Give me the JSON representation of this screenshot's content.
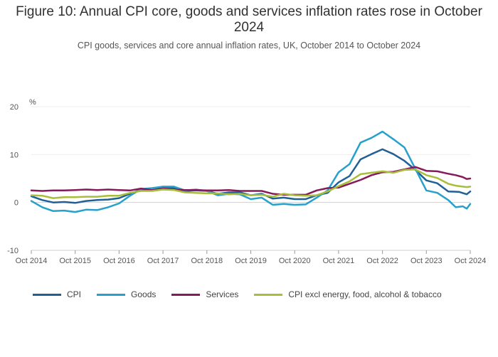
{
  "header": {
    "title": "Figure 10: Annual CPI core, goods and services inflation rates rose in October 2024",
    "subtitle": "CPI goods, services and core annual inflation rates, UK, October 2014 to October 2024"
  },
  "chart_data": {
    "type": "line",
    "title": "Figure 10: Annual CPI core, goods and services inflation rates rose in October 2024",
    "subtitle": "CPI goods, services and core annual inflation rates, UK, October 2014 to October 2024",
    "ylabel": "%",
    "ylim": [
      -10,
      20
    ],
    "yticks": [
      "20",
      "10",
      "0",
      "-10"
    ],
    "yticks_values": [
      20,
      10,
      0,
      -10
    ],
    "xlim": [
      2014.75,
      2024.75
    ],
    "xticks": [
      "Oct 2014",
      "Oct 2015",
      "Oct 2016",
      "Oct 2017",
      "Oct 2018",
      "Oct 2019",
      "Oct 2020",
      "Oct 2021",
      "Oct 2022",
      "Oct 2023",
      "Oct 2024"
    ],
    "xticks_values": [
      2014.75,
      2015.75,
      2016.75,
      2017.75,
      2018.75,
      2019.75,
      2020.75,
      2021.75,
      2022.75,
      2023.75,
      2024.75
    ],
    "x_unit": "year",
    "legend_position": "bottom",
    "series": [
      {
        "name": "CPI",
        "color": "#206095",
        "points": [
          [
            2014.75,
            1.3
          ],
          [
            2015.0,
            0.5
          ],
          [
            2015.25,
            0.0
          ],
          [
            2015.5,
            0.1
          ],
          [
            2015.75,
            -0.1
          ],
          [
            2016.0,
            0.3
          ],
          [
            2016.25,
            0.5
          ],
          [
            2016.5,
            0.6
          ],
          [
            2016.75,
            0.9
          ],
          [
            2017.0,
            1.8
          ],
          [
            2017.25,
            2.7
          ],
          [
            2017.5,
            2.6
          ],
          [
            2017.75,
            3.0
          ],
          [
            2018.0,
            3.0
          ],
          [
            2018.25,
            2.4
          ],
          [
            2018.5,
            2.5
          ],
          [
            2018.75,
            2.4
          ],
          [
            2019.0,
            1.8
          ],
          [
            2019.25,
            2.1
          ],
          [
            2019.5,
            2.1
          ],
          [
            2019.75,
            1.5
          ],
          [
            2020.0,
            1.8
          ],
          [
            2020.25,
            0.8
          ],
          [
            2020.5,
            1.0
          ],
          [
            2020.75,
            0.7
          ],
          [
            2021.0,
            0.7
          ],
          [
            2021.25,
            1.5
          ],
          [
            2021.5,
            2.0
          ],
          [
            2021.75,
            4.2
          ],
          [
            2022.0,
            5.5
          ],
          [
            2022.25,
            9.0
          ],
          [
            2022.5,
            10.1
          ],
          [
            2022.75,
            11.1
          ],
          [
            2023.0,
            10.1
          ],
          [
            2023.25,
            8.7
          ],
          [
            2023.5,
            6.8
          ],
          [
            2023.75,
            4.6
          ],
          [
            2024.0,
            4.0
          ],
          [
            2024.25,
            2.3
          ],
          [
            2024.5,
            2.2
          ],
          [
            2024.67,
            1.7
          ],
          [
            2024.75,
            2.3
          ]
        ]
      },
      {
        "name": "Goods",
        "color": "#27a0cc",
        "points": [
          [
            2014.75,
            0.3
          ],
          [
            2015.0,
            -1.0
          ],
          [
            2015.25,
            -1.8
          ],
          [
            2015.5,
            -1.7
          ],
          [
            2015.75,
            -2.0
          ],
          [
            2016.0,
            -1.5
          ],
          [
            2016.25,
            -1.6
          ],
          [
            2016.5,
            -1.0
          ],
          [
            2016.75,
            -0.2
          ],
          [
            2017.0,
            1.4
          ],
          [
            2017.25,
            2.8
          ],
          [
            2017.5,
            3.0
          ],
          [
            2017.75,
            3.3
          ],
          [
            2018.0,
            3.3
          ],
          [
            2018.25,
            2.5
          ],
          [
            2018.5,
            2.7
          ],
          [
            2018.75,
            2.4
          ],
          [
            2019.0,
            1.5
          ],
          [
            2019.25,
            1.8
          ],
          [
            2019.5,
            1.7
          ],
          [
            2019.75,
            0.7
          ],
          [
            2020.0,
            1.0
          ],
          [
            2020.25,
            -0.5
          ],
          [
            2020.5,
            -0.3
          ],
          [
            2020.75,
            -0.5
          ],
          [
            2021.0,
            -0.4
          ],
          [
            2021.25,
            1.0
          ],
          [
            2021.5,
            2.5
          ],
          [
            2021.75,
            6.3
          ],
          [
            2022.0,
            8.0
          ],
          [
            2022.25,
            12.5
          ],
          [
            2022.5,
            13.5
          ],
          [
            2022.75,
            14.8
          ],
          [
            2023.0,
            13.2
          ],
          [
            2023.25,
            11.5
          ],
          [
            2023.5,
            7.0
          ],
          [
            2023.75,
            2.5
          ],
          [
            2024.0,
            2.0
          ],
          [
            2024.25,
            0.5
          ],
          [
            2024.42,
            -1.0
          ],
          [
            2024.58,
            -0.8
          ],
          [
            2024.67,
            -1.3
          ],
          [
            2024.75,
            -0.3
          ]
        ]
      },
      {
        "name": "Services",
        "color": "#871a5b",
        "points": [
          [
            2014.75,
            2.5
          ],
          [
            2015.0,
            2.4
          ],
          [
            2015.25,
            2.5
          ],
          [
            2015.5,
            2.5
          ],
          [
            2015.75,
            2.6
          ],
          [
            2016.0,
            2.7
          ],
          [
            2016.25,
            2.6
          ],
          [
            2016.5,
            2.7
          ],
          [
            2016.75,
            2.6
          ],
          [
            2017.0,
            2.5
          ],
          [
            2017.25,
            2.9
          ],
          [
            2017.5,
            2.6
          ],
          [
            2017.75,
            2.9
          ],
          [
            2018.0,
            2.7
          ],
          [
            2018.25,
            2.6
          ],
          [
            2018.5,
            2.6
          ],
          [
            2018.75,
            2.5
          ],
          [
            2019.0,
            2.5
          ],
          [
            2019.25,
            2.6
          ],
          [
            2019.5,
            2.4
          ],
          [
            2019.75,
            2.4
          ],
          [
            2020.0,
            2.4
          ],
          [
            2020.25,
            1.8
          ],
          [
            2020.5,
            1.6
          ],
          [
            2020.75,
            1.6
          ],
          [
            2021.0,
            1.6
          ],
          [
            2021.25,
            2.5
          ],
          [
            2021.5,
            3.0
          ],
          [
            2021.75,
            3.1
          ],
          [
            2022.0,
            3.9
          ],
          [
            2022.25,
            4.7
          ],
          [
            2022.5,
            5.7
          ],
          [
            2022.75,
            6.3
          ],
          [
            2023.0,
            6.4
          ],
          [
            2023.25,
            6.9
          ],
          [
            2023.5,
            7.4
          ],
          [
            2023.75,
            6.6
          ],
          [
            2024.0,
            6.5
          ],
          [
            2024.25,
            6.0
          ],
          [
            2024.42,
            5.7
          ],
          [
            2024.58,
            5.3
          ],
          [
            2024.67,
            4.9
          ],
          [
            2024.75,
            5.0
          ]
        ]
      },
      {
        "name": "CPI excl energy, food, alcohol & tobacco",
        "color": "#a8bd3a",
        "points": [
          [
            2014.75,
            1.5
          ],
          [
            2015.0,
            1.4
          ],
          [
            2015.25,
            0.9
          ],
          [
            2015.5,
            1.1
          ],
          [
            2015.75,
            1.1
          ],
          [
            2016.0,
            1.2
          ],
          [
            2016.25,
            1.2
          ],
          [
            2016.5,
            1.4
          ],
          [
            2016.75,
            1.4
          ],
          [
            2017.0,
            2.0
          ],
          [
            2017.25,
            2.4
          ],
          [
            2017.5,
            2.4
          ],
          [
            2017.75,
            2.7
          ],
          [
            2018.0,
            2.6
          ],
          [
            2018.25,
            2.1
          ],
          [
            2018.5,
            2.0
          ],
          [
            2018.75,
            1.9
          ],
          [
            2019.0,
            1.9
          ],
          [
            2019.25,
            1.7
          ],
          [
            2019.5,
            1.8
          ],
          [
            2019.75,
            1.5
          ],
          [
            2020.0,
            1.6
          ],
          [
            2020.25,
            1.2
          ],
          [
            2020.5,
            1.8
          ],
          [
            2020.75,
            1.5
          ],
          [
            2021.0,
            1.4
          ],
          [
            2021.25,
            1.5
          ],
          [
            2021.5,
            2.3
          ],
          [
            2021.75,
            3.4
          ],
          [
            2022.0,
            4.4
          ],
          [
            2022.25,
            5.9
          ],
          [
            2022.5,
            6.2
          ],
          [
            2022.75,
            6.5
          ],
          [
            2023.0,
            6.2
          ],
          [
            2023.25,
            6.8
          ],
          [
            2023.5,
            6.9
          ],
          [
            2023.75,
            5.7
          ],
          [
            2024.0,
            5.1
          ],
          [
            2024.25,
            3.9
          ],
          [
            2024.42,
            3.5
          ],
          [
            2024.58,
            3.3
          ],
          [
            2024.67,
            3.2
          ],
          [
            2024.75,
            3.3
          ]
        ]
      }
    ]
  }
}
